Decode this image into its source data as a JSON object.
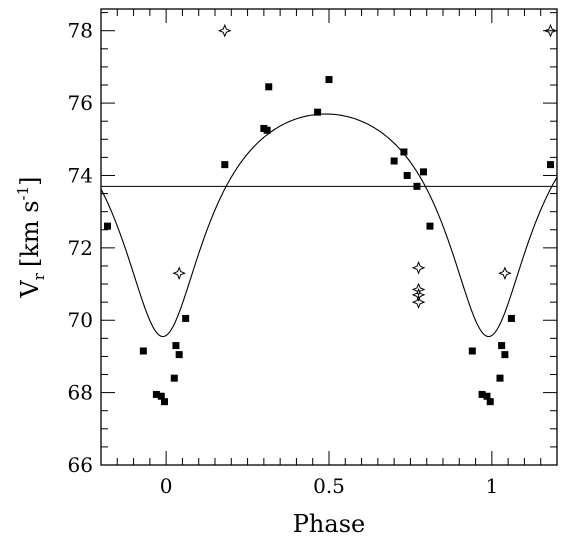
{
  "chart_data": {
    "type": "scatter",
    "xlabel": "Phase",
    "ylabel_main": "V",
    "ylabel_sub": "r",
    "ylabel_unit": "[km s",
    "ylabel_exp": "-1",
    "ylabel_close": "]",
    "xlim": [
      -0.2,
      1.2
    ],
    "ylim": [
      66,
      78.6
    ],
    "x_ticks": [
      0,
      0.5,
      1
    ],
    "x_tick_labels": [
      "0",
      "0.5",
      "1"
    ],
    "y_ticks": [
      66,
      68,
      70,
      72,
      74,
      76,
      78
    ],
    "y_tick_labels": [
      "66",
      "68",
      "70",
      "72",
      "74",
      "76",
      "78"
    ],
    "mean_line": 73.7,
    "grid": false,
    "series": [
      {
        "marker": "filled-square",
        "color": "#000000",
        "x": [
          -0.18,
          -0.07,
          -0.03,
          -0.015,
          -0.005,
          0.025,
          0.03,
          0.04,
          0.06,
          0.18,
          0.3,
          0.31,
          0.315,
          0.465,
          0.5,
          0.7,
          0.73,
          0.74,
          0.77,
          0.79,
          0.81,
          0.94,
          0.97,
          0.985,
          0.995,
          1.025,
          1.03,
          1.04,
          1.06,
          1.18
        ],
        "y": [
          72.6,
          69.15,
          67.95,
          67.9,
          67.75,
          68.4,
          69.3,
          69.05,
          70.05,
          74.3,
          75.3,
          75.25,
          76.45,
          75.75,
          76.65,
          74.4,
          74.65,
          74.0,
          73.7,
          74.1,
          72.6,
          69.15,
          67.95,
          67.9,
          67.75,
          68.4,
          69.3,
          69.05,
          70.05,
          74.3
        ]
      },
      {
        "marker": "open-star",
        "color": "#000000",
        "x": [
          0.04,
          0.18,
          0.775,
          0.775,
          0.775,
          0.775,
          1.04,
          1.18
        ],
        "y": [
          71.3,
          78.0,
          71.45,
          70.85,
          70.7,
          70.5,
          71.3,
          78.0
        ]
      }
    ],
    "fit_curve": {
      "mean": 73.7,
      "amplitude": 4.15,
      "phase_of_min": 0.99,
      "phase_of_max": 0.44
    }
  }
}
